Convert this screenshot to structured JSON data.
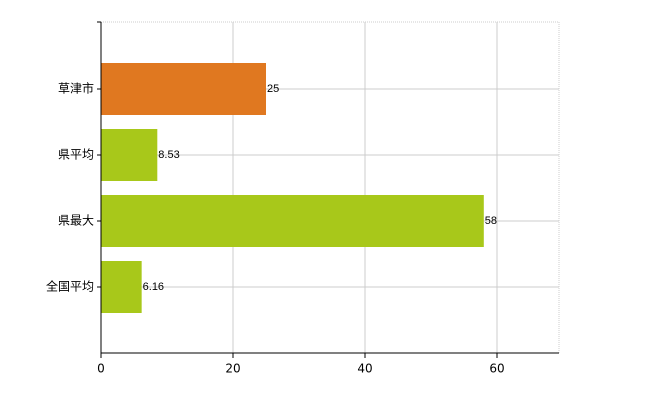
{
  "chart_data": {
    "type": "bar",
    "orientation": "horizontal",
    "categories": [
      "草津市",
      "県平均",
      "県最大",
      "全国平均"
    ],
    "values": [
      25,
      8.53,
      58,
      6.16
    ],
    "colors": [
      "#e07820",
      "#a8c81a",
      "#a8c81a",
      "#a8c81a"
    ],
    "xlim": [
      0,
      70
    ],
    "xticks": [
      0,
      20,
      40,
      60
    ],
    "grid": true
  }
}
